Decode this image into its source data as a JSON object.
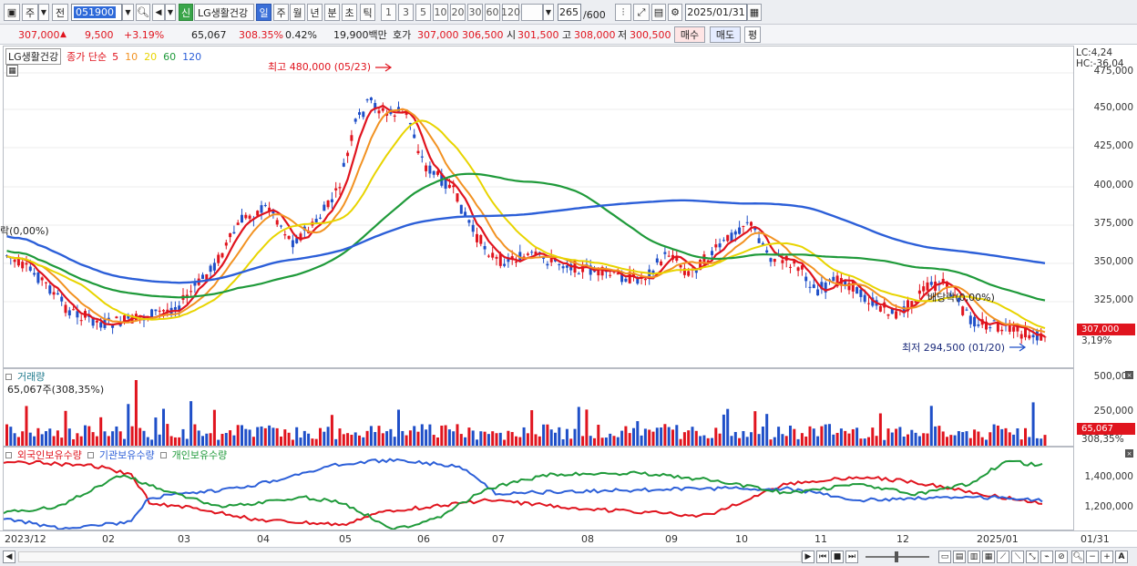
{
  "toolbar": {
    "type_label": "주",
    "prev_label": "전",
    "code": "051900",
    "tag_new": "신",
    "stock_name": "LG생활건강",
    "periods": [
      "일",
      "주",
      "월",
      "년",
      "분",
      "초",
      "틱"
    ],
    "active_period": "일",
    "intervals": [
      "1",
      "3",
      "5",
      "10",
      "20",
      "30",
      "60",
      "120"
    ],
    "count": "265",
    "count_total": "/600",
    "date": "2025/01/31"
  },
  "quote": {
    "price": "307,000",
    "change": "9,500",
    "change_pct": "+3.19%",
    "volume": "65,067",
    "volume_ratio": "308.35%",
    "turnover_pct": "0.42%",
    "amount": "19,900백만",
    "ask_label": "호가",
    "ask1": "307,000",
    "ask2": "306,500",
    "open_label": "시",
    "open": "301,500",
    "high_label": "고",
    "high": "308,000",
    "low_label": "저",
    "low": "300,500",
    "buy_label": "매수",
    "sell_label": "매도",
    "eval_label": "평"
  },
  "price_panel": {
    "legend_name": "LG생활건강",
    "legend_ma": "종가 단순",
    "ma_periods": [
      "5",
      "10",
      "20",
      "60",
      "120"
    ],
    "ma_colors": [
      "#e0141e",
      "#f29222",
      "#e8d400",
      "#1f9a3a",
      "#2c5fd8"
    ],
    "lc": "LC:4,24",
    "hc": "HC:-36,04",
    "high_note": "최고 480,000 (05/23)",
    "low_note": "최저 294,500 (01/20)",
    "ex_note_left": "락(0,00%)",
    "ex_note_right": "배당락(0,00%)",
    "y_ticks": [
      "475,000",
      "450,000",
      "425,000",
      "400,000",
      "375,000",
      "350,000",
      "325,000"
    ],
    "last_price_tag": "307,000",
    "last_pct_tag": "3,19%"
  },
  "volume_panel": {
    "title": "거래량",
    "value": "65,067주(308,35%)",
    "y_ticks": [
      "500,000",
      "250,000"
    ],
    "last_tag": "65,067",
    "last_pct_tag": "308,35%"
  },
  "holding_panel": {
    "legend": [
      "외국인보유수량",
      "기관보유수량",
      "개인보유수량"
    ],
    "legend_colors": [
      "#e0141e",
      "#2c5fd8",
      "#1f9a3a"
    ],
    "y_ticks": [
      "1,400,000",
      "1,200,000"
    ]
  },
  "x_axis": {
    "labels": [
      "2023/12",
      "02",
      "03",
      "04",
      "05",
      "06",
      "07",
      "08",
      "09",
      "10",
      "11",
      "12",
      "2025/01"
    ],
    "right_label": "01/31"
  }
}
